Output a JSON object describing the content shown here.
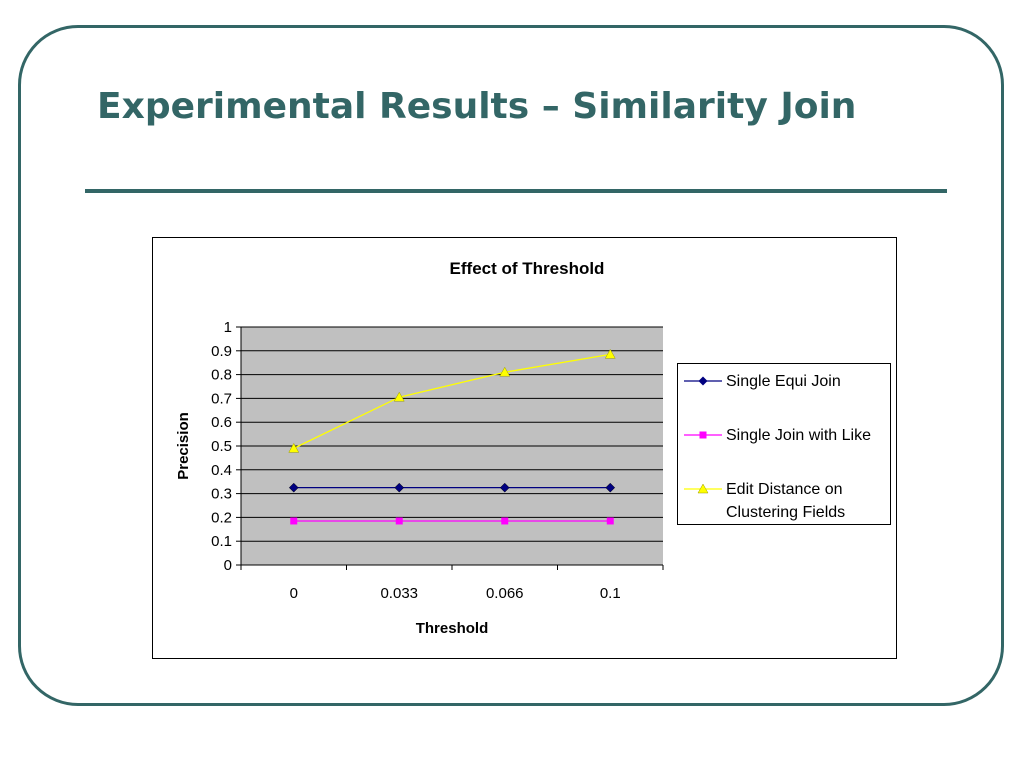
{
  "slide": {
    "title": "Experimental Results – Similarity Join"
  },
  "chart_data": {
    "type": "line",
    "title": "Effect of Threshold",
    "xlabel": "Threshold",
    "ylabel": "Precision",
    "categories": [
      "0",
      "0.033",
      "0.066",
      "0.1"
    ],
    "ylim": [
      0,
      1
    ],
    "yticks": [
      "0",
      "0.1",
      "0.2",
      "0.3",
      "0.4",
      "0.5",
      "0.6",
      "0.7",
      "0.8",
      "0.9",
      "1"
    ],
    "grid": true,
    "plot_background": "#c0c0c0",
    "legend_position": "right",
    "series": [
      {
        "name": "Single Equi Join",
        "values": [
          0.325,
          0.325,
          0.325,
          0.325
        ],
        "color": "#000080",
        "marker": "diamond"
      },
      {
        "name": "Single Join with Like",
        "values": [
          0.185,
          0.185,
          0.185,
          0.185
        ],
        "color": "#ff00ff",
        "marker": "square"
      },
      {
        "name": "Edit Distance on Clustering Fields",
        "values": [
          0.49,
          0.705,
          0.81,
          0.885
        ],
        "color": "#ffff00",
        "marker": "triangle"
      }
    ]
  }
}
